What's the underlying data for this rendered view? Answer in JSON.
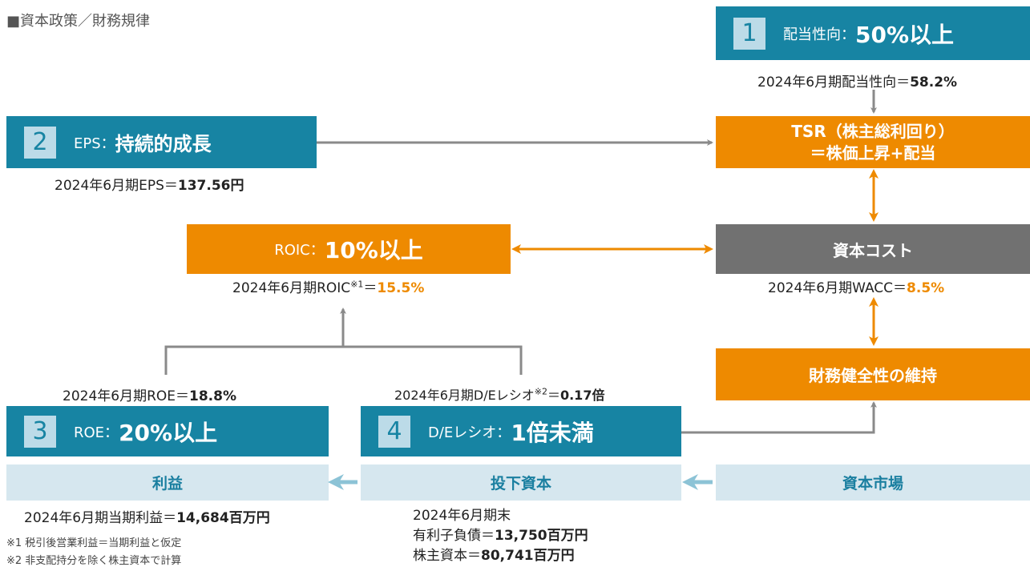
{
  "title": "■資本政策／財務規律",
  "policies": [
    {
      "number": "1",
      "label": "配当性向：",
      "target": "50%以上",
      "result": {
        "text": "2024年6月期配当性向＝",
        "value": "58.2%"
      }
    },
    {
      "number": "2",
      "label": "EPS：",
      "target": "持続的成長",
      "result": {
        "text": "2024年6月期EPS＝",
        "value": "137.56円"
      }
    },
    {
      "number": "3",
      "label": "ROE：",
      "target": "20%以上",
      "result": {
        "text": "2024年6月期ROE＝",
        "value": "18.8%"
      }
    },
    {
      "number": "4",
      "label": "D/Eレシオ：",
      "target": "1倍未満",
      "result": {
        "text": "2024年6月期D/Eレシオ",
        "note": "※2",
        "eq": "＝",
        "value": "0.17倍"
      }
    }
  ],
  "roic": {
    "label": "ROIC：",
    "target": "10%以上",
    "result": {
      "text": "2024年6月期ROIC",
      "note": "※1",
      "eq": "＝",
      "value": "15.5%"
    }
  },
  "tsr": {
    "line1": "TSR（株主総利回り）",
    "line2": "＝株価上昇+配当"
  },
  "capital_cost": {
    "label": "資本コスト",
    "result": {
      "text": "2024年6月期WACC＝",
      "value": "8.5%"
    }
  },
  "financial_health": "財務健全性の維持",
  "flow": [
    {
      "label": "利益",
      "lines": [
        {
          "text": "2024年6月期当期利益＝",
          "value": "14,684百万円"
        }
      ]
    },
    {
      "label": "投下資本",
      "heading": "2024年6月期末",
      "lines": [
        {
          "text": "有利子負債＝",
          "value": "13,750百万円"
        },
        {
          "text": "株主資本＝",
          "value": "80,741百万円"
        }
      ]
    },
    {
      "label": "資本市場"
    }
  ],
  "footnotes": [
    "※1 税引後営業利益＝当期利益と仮定",
    "※2 非支配持分を除く株主資本で計算"
  ]
}
